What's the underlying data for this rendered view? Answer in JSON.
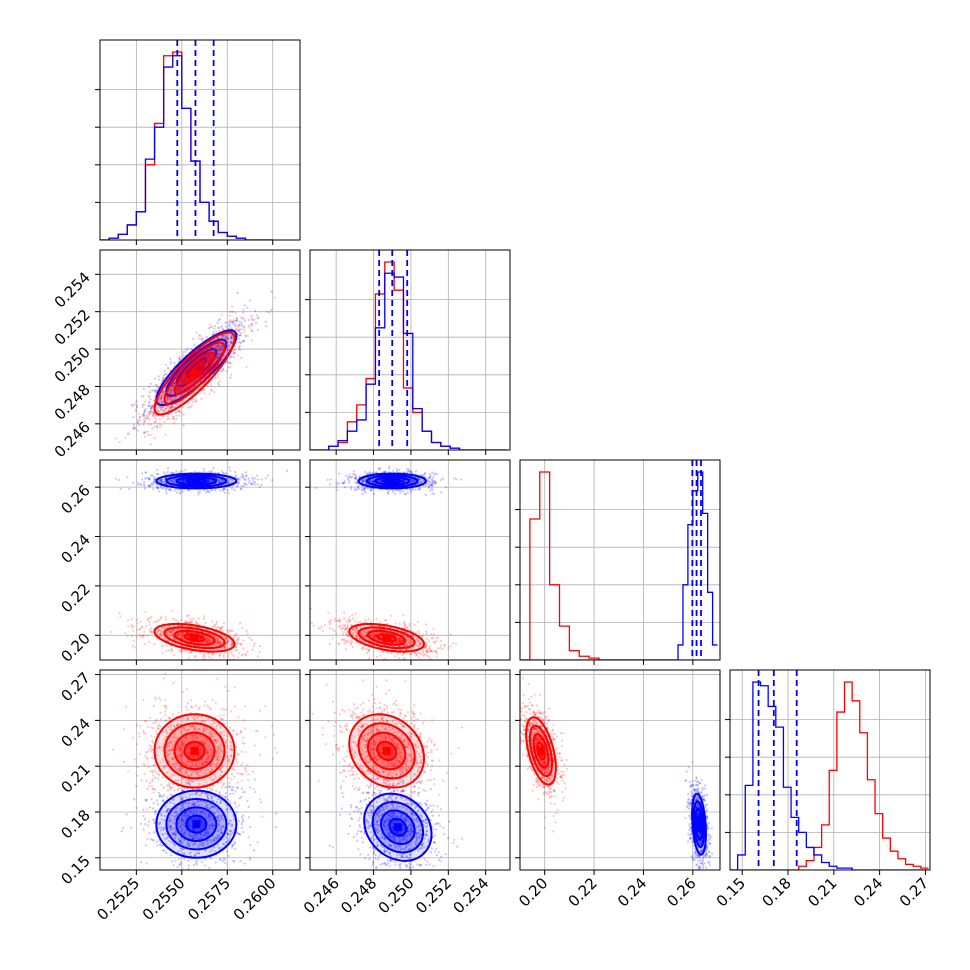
{
  "chart_data": {
    "type": "corner",
    "series": [
      {
        "name": "",
        "color": "#ff0000"
      },
      {
        "name": "",
        "color": "#0000ff"
      }
    ],
    "parameters": [
      {
        "range": [
          0.2505,
          0.2615
        ],
        "ticks": [
          0.2525,
          0.255,
          0.2575,
          0.26
        ],
        "tick_labels": [
          "0.2525",
          "0.2550",
          "0.2575",
          "0.2600"
        ]
      },
      {
        "range": [
          0.2446,
          0.2553
        ],
        "ticks": [
          0.246,
          0.248,
          0.25,
          0.252,
          0.254
        ],
        "tick_labels": [
          "0.246",
          "0.248",
          "0.250",
          "0.252",
          "0.254"
        ]
      },
      {
        "range": [
          0.19,
          0.271
        ],
        "ticks": [
          0.2,
          0.22,
          0.24,
          0.26
        ],
        "tick_labels": [
          "0.20",
          "0.22",
          "0.24",
          "0.26"
        ]
      },
      {
        "range": [
          0.142,
          0.273
        ],
        "ticks": [
          0.15,
          0.18,
          0.21,
          0.24,
          0.27
        ],
        "tick_labels": [
          "0.15",
          "0.18",
          "0.21",
          "0.24",
          "0.27"
        ]
      }
    ],
    "histograms": [
      {
        "bins": [
          0.2505,
          0.251,
          0.2515,
          0.252,
          0.2525,
          0.253,
          0.2535,
          0.254,
          0.2545,
          0.255,
          0.2555,
          0.256,
          0.2565,
          0.257,
          0.2575,
          0.258,
          0.2585,
          0.259,
          0.2595,
          0.26
        ],
        "red": [
          0,
          1,
          3,
          8,
          15,
          40,
          62,
          98,
          100,
          70,
          42,
          20,
          10,
          4,
          2,
          1,
          0,
          0,
          0,
          0
        ],
        "blue": [
          0,
          1,
          3,
          8,
          15,
          43,
          60,
          92,
          98,
          70,
          42,
          20,
          10,
          4,
          2,
          1,
          0,
          0,
          0,
          0
        ],
        "quantiles_blue": [
          0.25475,
          0.25575,
          0.25675
        ]
      },
      {
        "bins": [
          0.2446,
          0.2451,
          0.2456,
          0.2461,
          0.2466,
          0.2471,
          0.2476,
          0.2481,
          0.2486,
          0.2491,
          0.2496,
          0.2501,
          0.2506,
          0.2511,
          0.2516,
          0.2521,
          0.2526,
          0.2531,
          0.2536,
          0.2541,
          0.2546,
          0.2551
        ],
        "red": [
          0,
          0,
          2,
          4,
          15,
          24,
          38,
          83,
          100,
          85,
          33,
          20,
          10,
          4,
          2,
          1,
          0,
          0,
          0,
          0,
          0,
          0
        ],
        "blue": [
          0,
          0,
          2,
          5,
          10,
          16,
          35,
          65,
          94,
          92,
          62,
          22,
          10,
          4,
          2,
          1,
          0,
          0,
          0,
          0,
          0,
          0
        ],
        "quantiles_blue": [
          0.2483,
          0.249,
          0.2498
        ]
      },
      {
        "bins": [
          0.19,
          0.194,
          0.198,
          0.202,
          0.206,
          0.21,
          0.214,
          0.218,
          0.222,
          0.226,
          0.23,
          0.234,
          0.238,
          0.242,
          0.246,
          0.25,
          0.254,
          0.258,
          0.262,
          0.266,
          0.27
        ],
        "red": [
          0,
          75,
          100,
          40,
          18,
          5,
          2,
          1,
          0,
          0,
          0,
          0,
          0,
          0,
          0,
          0,
          0,
          0,
          0,
          0,
          0
        ],
        "blue": [
          0,
          0,
          0,
          0,
          0,
          0,
          0,
          0,
          0,
          0,
          0,
          0,
          0,
          0,
          0,
          0,
          0,
          0,
          0,
          0,
          0
        ],
        "blue_bins": [
          0.252,
          0.254,
          0.256,
          0.258,
          0.26,
          0.262,
          0.264,
          0.266,
          0.268,
          0.27
        ],
        "blue_vals": [
          0,
          8,
          40,
          72,
          90,
          100,
          78,
          36,
          8
        ],
        "quantiles_blue": [
          0.2598,
          0.2615,
          0.2633
        ]
      },
      {
        "bins": [
          0.142,
          0.147,
          0.152,
          0.157,
          0.162,
          0.167,
          0.172,
          0.177,
          0.182,
          0.187,
          0.192,
          0.197,
          0.202,
          0.207,
          0.212,
          0.217,
          0.222,
          0.227,
          0.232,
          0.237,
          0.242,
          0.247,
          0.252,
          0.257,
          0.262,
          0.267,
          0.272
        ],
        "red": [
          0,
          0,
          0,
          0,
          0,
          0,
          0,
          0,
          0,
          2,
          5,
          12,
          24,
          53,
          84,
          100,
          90,
          73,
          48,
          30,
          17,
          10,
          6,
          3,
          2,
          1
        ],
        "blue": [
          0,
          8,
          45,
          100,
          98,
          87,
          76,
          44,
          28,
          20,
          12,
          8,
          4,
          2,
          1,
          1,
          0,
          0,
          0,
          0,
          0,
          0,
          0,
          0,
          0,
          0
        ],
        "quantiles_blue": [
          0.1607,
          0.1707,
          0.1857
        ]
      }
    ],
    "clusters_2d": [
      {
        "x": 0,
        "y": 1,
        "red": {
          "mx": 0.2557,
          "my": 0.2487,
          "sx": 0.0011,
          "sy": 0.0011,
          "rho": 0.85
        },
        "blue": {
          "mx": 0.2558,
          "my": 0.249,
          "sx": 0.0011,
          "sy": 0.001,
          "rho": 0.85
        }
      },
      {
        "x": 0,
        "y": 2,
        "red": {
          "mx": 0.2557,
          "my": 0.199,
          "sx": 0.0011,
          "sy": 0.0028,
          "rho": -0.45
        },
        "blue": {
          "mx": 0.2558,
          "my": 0.2625,
          "sx": 0.0011,
          "sy": 0.0015,
          "rho": 0.0
        }
      },
      {
        "x": 1,
        "y": 2,
        "red": {
          "mx": 0.2487,
          "my": 0.199,
          "sx": 0.001,
          "sy": 0.0028,
          "rho": -0.45
        },
        "blue": {
          "mx": 0.249,
          "my": 0.2625,
          "sx": 0.0009,
          "sy": 0.0015,
          "rho": 0.0
        }
      },
      {
        "x": 0,
        "y": 3,
        "red": {
          "mx": 0.2557,
          "my": 0.22,
          "sx": 0.0011,
          "sy": 0.012,
          "rho": 0.0
        },
        "blue": {
          "mx": 0.2558,
          "my": 0.172,
          "sx": 0.0011,
          "sy": 0.011,
          "rho": 0.0
        }
      },
      {
        "x": 1,
        "y": 3,
        "red": {
          "mx": 0.2487,
          "my": 0.22,
          "sx": 0.001,
          "sy": 0.012,
          "rho": -0.2
        },
        "blue": {
          "mx": 0.2493,
          "my": 0.17,
          "sx": 0.0009,
          "sy": 0.011,
          "rho": -0.2
        }
      },
      {
        "x": 2,
        "y": 3,
        "red": {
          "mx": 0.1985,
          "my": 0.22,
          "sx": 0.003,
          "sy": 0.011,
          "rho": -0.5
        },
        "blue": {
          "mx": 0.2625,
          "my": 0.172,
          "sx": 0.0014,
          "sy": 0.01,
          "rho": -0.3
        }
      }
    ],
    "contour_levels_sigma": [
      0.5,
      1.0,
      1.5,
      2.0
    ],
    "grid": true
  }
}
